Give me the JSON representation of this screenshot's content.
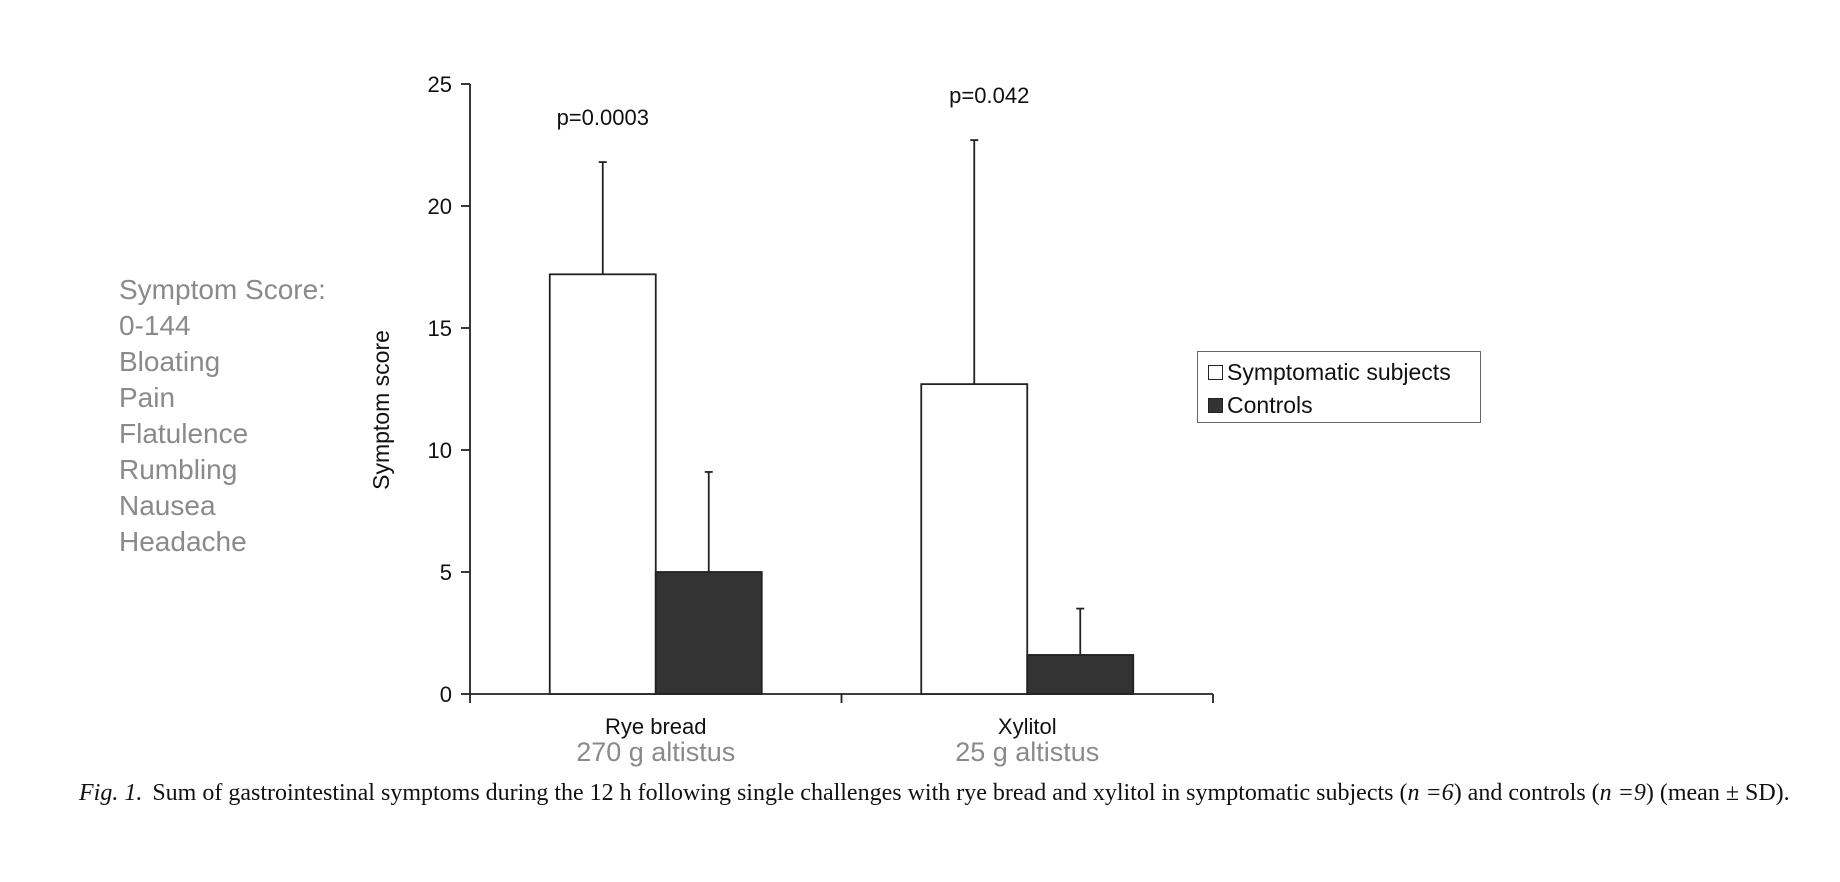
{
  "chart_data": {
    "type": "bar",
    "ylabel": "Symptom score",
    "xlabel": "",
    "ylim": [
      0,
      25
    ],
    "yticks": [
      0,
      5,
      10,
      15,
      20,
      25
    ],
    "categories": [
      "Rye bread",
      "Xylitol"
    ],
    "category_sublabels": [
      "270 g altistus",
      "25 g altistus"
    ],
    "series": [
      {
        "name": "Symptomatic subjects",
        "values": [
          17.2,
          12.7
        ],
        "sd": [
          4.6,
          10.0
        ],
        "color": "#ffffff"
      },
      {
        "name": "Controls",
        "values": [
          5.0,
          1.6
        ],
        "sd": [
          4.1,
          1.9
        ],
        "color": "#333333"
      }
    ],
    "annotations": [
      "p=0.0003",
      "p=0.042"
    ],
    "grid": false,
    "legend_position": "right"
  },
  "side_note": [
    "Symptom Score:",
    "0-144",
    "Bloating",
    "Pain",
    "Flatulence",
    "Rumbling",
    "Nausea",
    "Headache"
  ],
  "caption": {
    "label": "Fig. 1.",
    "text_before_n1": "Sum of gastrointestinal symptoms during the 12 h following single challenges with rye bread and xylitol in symptomatic subjects (",
    "n1": "n =6",
    "text_between": ") and controls (",
    "n2": "n =9",
    "text_after": ") (mean ± SD)."
  },
  "colors": {
    "bar_symptomatic": "#ffffff",
    "bar_controls": "#333333",
    "axis": "#222222",
    "side_note": "#8a8a8a"
  }
}
